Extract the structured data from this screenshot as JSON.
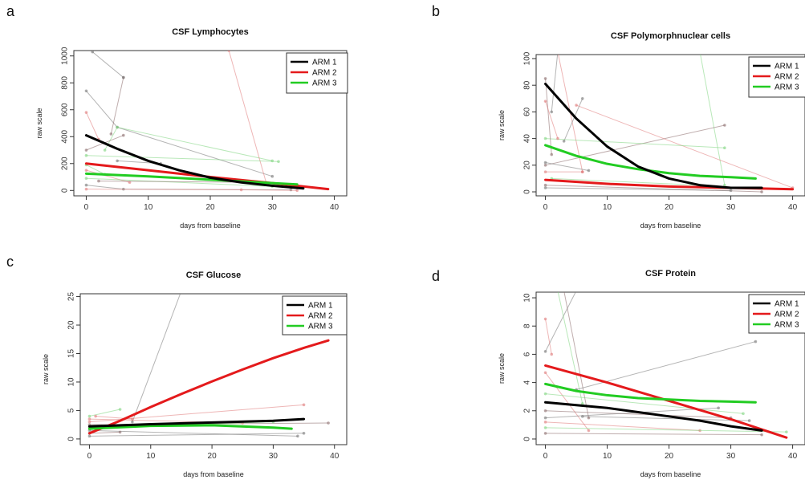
{
  "colors": {
    "arm1": "#000000",
    "arm2": "#e41a1c",
    "arm3": "#22cc22"
  },
  "chart_data": [
    {
      "panel": "a",
      "type": "line",
      "title": "CSF Lymphocytes",
      "xlabel": "days from baseline",
      "ylabel": "raw scale",
      "xlim": [
        -2,
        42
      ],
      "ylim": [
        -40,
        1040
      ],
      "xticks": [
        "0",
        "10",
        "20",
        "30",
        "40"
      ],
      "xtick_values": [
        0,
        10,
        20,
        30,
        40
      ],
      "yticks": [
        "0",
        "200",
        "400",
        "600",
        "800",
        "1000"
      ],
      "ytick_values": [
        0,
        200,
        400,
        600,
        800,
        1000
      ],
      "legend": [
        "ARM 1",
        "ARM 2",
        "ARM 3"
      ],
      "legend_position": "top-right",
      "series": [
        {
          "name": "ARM 1",
          "x": [
            0,
            5,
            10,
            15,
            20,
            25,
            30,
            35
          ],
          "y": [
            410,
            310,
            220,
            150,
            95,
            60,
            35,
            15
          ]
        },
        {
          "name": "ARM 2",
          "x": [
            0,
            10,
            20,
            30,
            39
          ],
          "y": [
            200,
            150,
            100,
            55,
            10
          ]
        },
        {
          "name": "ARM 3",
          "x": [
            0,
            10,
            20,
            30,
            34
          ],
          "y": [
            125,
            105,
            80,
            55,
            45
          ]
        }
      ],
      "spaghetti": [
        [
          [
            0,
            740
          ],
          [
            5,
            470
          ],
          [
            30,
            105
          ]
        ],
        [
          [
            0,
            580
          ],
          [
            2,
            380
          ]
        ],
        [
          [
            3,
            300
          ],
          [
            5,
            470
          ],
          [
            30,
            220
          ]
        ],
        [
          [
            4,
            420
          ],
          [
            6,
            840
          ]
        ],
        [
          [
            1,
            1030
          ],
          [
            6,
            840
          ]
        ],
        [
          [
            23,
            1040
          ],
          [
            29,
            60
          ]
        ],
        [
          [
            0,
            260
          ],
          [
            31,
            215
          ]
        ],
        [
          [
            0,
            300
          ],
          [
            6,
            410
          ]
        ],
        [
          [
            5,
            220
          ],
          [
            12,
            200
          ]
        ],
        [
          [
            0,
            150
          ],
          [
            7,
            60
          ]
        ],
        [
          [
            0,
            90
          ],
          [
            30,
            30
          ]
        ],
        [
          [
            2,
            70
          ],
          [
            28,
            60
          ]
        ],
        [
          [
            0,
            40
          ],
          [
            6,
            10
          ],
          [
            33,
            5
          ]
        ],
        [
          [
            0,
            10
          ],
          [
            25,
            5
          ],
          [
            34,
            0
          ]
        ],
        [
          [
            0,
            190
          ],
          [
            3,
            120
          ]
        ]
      ]
    },
    {
      "panel": "b",
      "type": "line",
      "title": "CSF Polymorphnuclear cells",
      "xlabel": "days from baseline",
      "ylabel": "raw scale",
      "xlim": [
        -1.5,
        42
      ],
      "ylim": [
        -3,
        103
      ],
      "xticks": [
        "0",
        "10",
        "20",
        "30",
        "40"
      ],
      "xtick_values": [
        0,
        10,
        20,
        30,
        40
      ],
      "yticks": [
        "0",
        "20",
        "40",
        "60",
        "80",
        "100"
      ],
      "ytick_values": [
        0,
        20,
        40,
        60,
        80,
        100
      ],
      "legend": [
        "ARM 1",
        "ARM 2",
        "ARM 3"
      ],
      "legend_position": "top-right",
      "series": [
        {
          "name": "ARM 1",
          "x": [
            0,
            5,
            10,
            15,
            20,
            25,
            30,
            35
          ],
          "y": [
            81,
            55,
            34,
            19,
            10,
            5,
            3,
            3
          ]
        },
        {
          "name": "ARM 2",
          "x": [
            0,
            10,
            20,
            30,
            40
          ],
          "y": [
            9,
            6,
            4,
            3,
            2
          ]
        },
        {
          "name": "ARM 3",
          "x": [
            0,
            5,
            10,
            15,
            20,
            25,
            30,
            34
          ],
          "y": [
            35,
            27,
            21,
            17,
            14,
            12,
            11,
            10
          ]
        }
      ],
      "spaghetti": [
        [
          [
            1,
            60
          ],
          [
            2,
            105
          ]
        ],
        [
          [
            2,
            105
          ],
          [
            6,
            15
          ]
        ],
        [
          [
            25,
            105
          ],
          [
            29,
            5
          ]
        ],
        [
          [
            0,
            20
          ],
          [
            29,
            50
          ]
        ],
        [
          [
            3,
            38
          ],
          [
            6,
            70
          ]
        ],
        [
          [
            5,
            65
          ],
          [
            40,
            3
          ]
        ],
        [
          [
            0,
            40
          ],
          [
            29,
            33
          ]
        ],
        [
          [
            0,
            85
          ],
          [
            1,
            28
          ]
        ],
        [
          [
            0,
            22
          ],
          [
            7,
            16
          ]
        ],
        [
          [
            0,
            15
          ],
          [
            6,
            15
          ]
        ],
        [
          [
            1,
            10
          ],
          [
            25,
            5
          ]
        ],
        [
          [
            0,
            5
          ],
          [
            35,
            0
          ]
        ],
        [
          [
            0,
            3
          ],
          [
            30,
            1
          ]
        ],
        [
          [
            0,
            68
          ],
          [
            2,
            40
          ]
        ]
      ]
    },
    {
      "panel": "c",
      "type": "line",
      "title": "CSF Glucose",
      "xlabel": "days from baseline",
      "ylabel": "raw scale",
      "xlim": [
        -1.5,
        42
      ],
      "ylim": [
        -1,
        25.5
      ],
      "xticks": [
        "0",
        "10",
        "20",
        "30",
        "40"
      ],
      "xtick_values": [
        0,
        10,
        20,
        30,
        40
      ],
      "yticks": [
        "0",
        "5",
        "10",
        "15",
        "20",
        "25"
      ],
      "ytick_values": [
        0,
        5,
        10,
        15,
        20,
        25
      ],
      "legend": [
        "ARM 1",
        "ARM 2",
        "ARM 3"
      ],
      "legend_position": "top-right",
      "series": [
        {
          "name": "ARM 1",
          "x": [
            0,
            10,
            20,
            30,
            35
          ],
          "y": [
            2.2,
            2.6,
            2.9,
            3.2,
            3.5
          ]
        },
        {
          "name": "ARM 2",
          "x": [
            0,
            5,
            10,
            15,
            20,
            25,
            30,
            35,
            39
          ],
          "y": [
            1.0,
            3.2,
            5.6,
            7.9,
            10.1,
            12.2,
            14.2,
            16.0,
            17.3
          ]
        },
        {
          "name": "ARM 3",
          "x": [
            0,
            10,
            20,
            30,
            33
          ],
          "y": [
            1.8,
            2.3,
            2.4,
            2.0,
            1.8
          ]
        }
      ],
      "spaghetti": [
        [
          [
            7,
            3
          ],
          [
            15,
            26
          ]
        ],
        [
          [
            0,
            3
          ],
          [
            35,
            6
          ]
        ],
        [
          [
            0,
            4
          ],
          [
            5,
            5.2
          ]
        ],
        [
          [
            0,
            2.5
          ],
          [
            39,
            2.8
          ]
        ],
        [
          [
            0,
            1.5
          ],
          [
            34,
            0.5
          ]
        ],
        [
          [
            0,
            3.5
          ],
          [
            25,
            2.8
          ]
        ],
        [
          [
            0,
            2
          ],
          [
            30,
            3
          ]
        ],
        [
          [
            0,
            1
          ],
          [
            5,
            1.2
          ]
        ],
        [
          [
            0,
            0.5
          ],
          [
            35,
            1.0
          ]
        ],
        [
          [
            1,
            4
          ],
          [
            7,
            3.5
          ]
        ]
      ]
    },
    {
      "panel": "d",
      "type": "line",
      "title": "CSF Protein",
      "xlabel": "days from baseline",
      "ylabel": "raw scale",
      "xlim": [
        -1.5,
        42
      ],
      "ylim": [
        -0.4,
        10.4
      ],
      "xticks": [
        "0",
        "10",
        "20",
        "30",
        "40"
      ],
      "xtick_values": [
        0,
        10,
        20,
        30,
        40
      ],
      "yticks": [
        "0",
        "2",
        "4",
        "6",
        "8",
        "10"
      ],
      "ytick_values": [
        0,
        2,
        4,
        6,
        8,
        10
      ],
      "legend": [
        "ARM 1",
        "ARM 2",
        "ARM 3"
      ],
      "legend_position": "top-right",
      "series": [
        {
          "name": "ARM 1",
          "x": [
            0,
            5,
            10,
            15,
            20,
            25,
            30,
            35
          ],
          "y": [
            2.6,
            2.4,
            2.2,
            1.9,
            1.6,
            1.3,
            0.9,
            0.6
          ]
        },
        {
          "name": "ARM 2",
          "x": [
            0,
            10,
            20,
            30,
            39
          ],
          "y": [
            5.2,
            4.0,
            2.7,
            1.4,
            0.1
          ]
        },
        {
          "name": "ARM 3",
          "x": [
            0,
            5,
            10,
            15,
            20,
            25,
            30,
            34
          ],
          "y": [
            3.9,
            3.4,
            3.1,
            2.9,
            2.8,
            2.7,
            2.65,
            2.6
          ]
        }
      ],
      "spaghetti": [
        [
          [
            0,
            6.2
          ],
          [
            5,
            10.5
          ]
        ],
        [
          [
            0,
            8.5
          ],
          [
            1,
            6
          ]
        ],
        [
          [
            2,
            10.5
          ],
          [
            6,
            2.5
          ]
        ],
        [
          [
            3,
            10.5
          ],
          [
            7,
            1.5
          ]
        ],
        [
          [
            5,
            3.5
          ],
          [
            34,
            6.9
          ]
        ],
        [
          [
            0,
            4.7
          ],
          [
            7,
            0.6
          ]
        ],
        [
          [
            0,
            3.2
          ],
          [
            32,
            1.8
          ]
        ],
        [
          [
            0,
            2.0
          ],
          [
            30,
            1.5
          ]
        ],
        [
          [
            0,
            1.5
          ],
          [
            28,
            2.2
          ]
        ],
        [
          [
            0,
            1.2
          ],
          [
            25,
            0.6
          ]
        ],
        [
          [
            0,
            0.8
          ],
          [
            39,
            0.5
          ]
        ],
        [
          [
            0,
            0.4
          ],
          [
            35,
            0.3
          ]
        ],
        [
          [
            6,
            1.6
          ],
          [
            33,
            1.3
          ]
        ]
      ]
    }
  ]
}
